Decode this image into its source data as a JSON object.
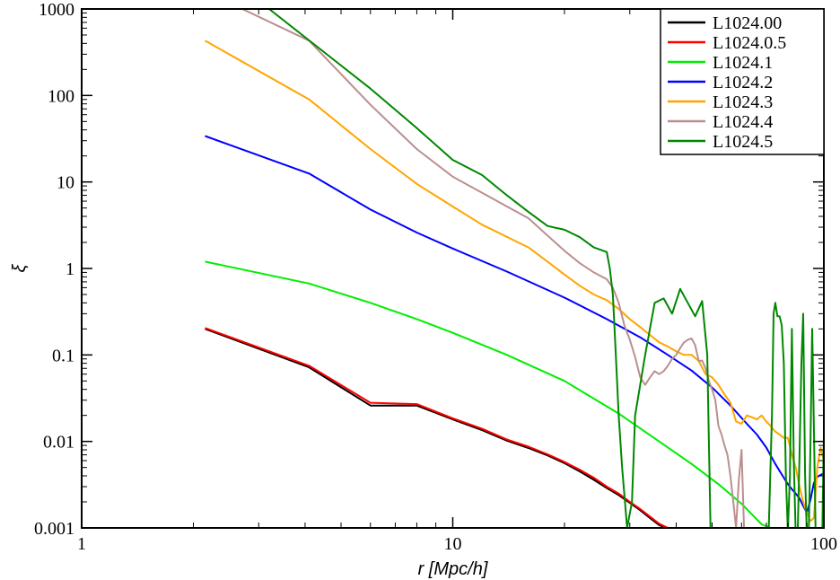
{
  "chart_data": {
    "type": "line",
    "xlabel": "r [Mpc/h]",
    "ylabel": "ξ",
    "xscale": "log",
    "yscale": "log",
    "xlim": [
      1,
      100
    ],
    "ylim": [
      0.001,
      1000
    ],
    "x_ticks": [
      "1",
      "10",
      "100"
    ],
    "y_ticks": [
      "0.001",
      "0.01",
      "0.1",
      "1",
      "10",
      "100",
      "1000"
    ],
    "legend_position": "top-right",
    "grid": false,
    "series": [
      {
        "name": "L1024.00",
        "color": "#000000",
        "x": [
          2.15,
          4.1,
          6.0,
          8.0,
          10.0,
          12.0,
          14.0,
          16.0,
          18.0,
          20.0,
          22.0,
          24.0,
          26.0,
          28.0,
          30.0,
          32.0,
          34.0,
          36.0,
          37.5
        ],
        "y": [
          0.2,
          0.072,
          0.026,
          0.026,
          0.018,
          0.0135,
          0.0102,
          0.0084,
          0.0069,
          0.0056,
          0.0045,
          0.0036,
          0.0029,
          0.0024,
          0.00195,
          0.0016,
          0.0013,
          0.00108,
          0.001
        ]
      },
      {
        "name": "L1024.0.5",
        "color": "#ff0000",
        "x": [
          2.15,
          4.1,
          6.0,
          8.0,
          10.0,
          12.0,
          14.0,
          16.0,
          18.0,
          20.0,
          22.0,
          24.0,
          26.0,
          28.0,
          30.0,
          32.0,
          34.0,
          36.0,
          38.0
        ],
        "y": [
          0.205,
          0.075,
          0.028,
          0.027,
          0.0185,
          0.014,
          0.0105,
          0.0087,
          0.0071,
          0.0058,
          0.0047,
          0.0038,
          0.003,
          0.0025,
          0.002,
          0.00165,
          0.00135,
          0.00112,
          0.001
        ]
      },
      {
        "name": "L1024.1",
        "color": "#00ee00",
        "x": [
          2.15,
          4.1,
          6.0,
          8.0,
          10.0,
          14.0,
          20.0,
          28.0,
          36.0,
          44.0,
          52.0,
          60.0,
          68.0,
          72.0
        ],
        "y": [
          1.2,
          0.67,
          0.4,
          0.26,
          0.18,
          0.1,
          0.05,
          0.021,
          0.01,
          0.0055,
          0.0032,
          0.0019,
          0.0011,
          0.001
        ]
      },
      {
        "name": "L1024.2",
        "color": "#0000ff",
        "x": [
          2.15,
          4.1,
          6.0,
          8.0,
          10.0,
          14.0,
          20.0,
          26.0,
          32.0,
          38.0,
          44.0,
          50.0,
          56.0,
          62.0,
          66.0,
          70.0,
          74.0,
          78.0,
          80.0,
          82.0,
          84.0,
          86.0,
          88.0,
          90.0,
          92.0,
          94.0,
          96.0,
          98.0,
          100.0
        ],
        "y": [
          34.0,
          12.5,
          4.8,
          2.6,
          1.7,
          0.92,
          0.46,
          0.26,
          0.16,
          0.1,
          0.066,
          0.042,
          0.026,
          0.016,
          0.012,
          0.0085,
          0.0055,
          0.0038,
          0.0032,
          0.0028,
          0.0025,
          0.0022,
          0.0018,
          0.0015,
          0.0021,
          0.0033,
          0.0039,
          0.0041,
          0.0043
        ]
      },
      {
        "name": "L1024.3",
        "color": "#ffa500",
        "x": [
          2.15,
          4.1,
          6.0,
          8.0,
          10.0,
          12.0,
          16.0,
          18.0,
          20.0,
          22.0,
          24.0,
          26.0,
          28.0,
          30.0,
          32.0,
          34.0,
          36.0,
          38.0,
          40.0,
          42.0,
          44.0,
          46.0,
          48.0,
          50.0,
          52.0,
          54.0,
          56.0,
          58.0,
          60.0,
          62.0,
          64.0,
          66.0,
          68.0,
          70.0,
          72.0,
          74.0,
          76.0,
          78.0,
          80.0,
          82.0,
          84.0,
          86.0,
          88.0,
          90.0,
          92.0,
          94.0,
          96.0,
          98.0,
          100.0
        ],
        "y": [
          430.0,
          90.0,
          24.0,
          9.5,
          5.2,
          3.2,
          1.75,
          1.2,
          0.85,
          0.63,
          0.5,
          0.43,
          0.34,
          0.26,
          0.21,
          0.17,
          0.14,
          0.125,
          0.11,
          0.1,
          0.1,
          0.085,
          0.06,
          0.055,
          0.045,
          0.035,
          0.028,
          0.017,
          0.016,
          0.02,
          0.019,
          0.018,
          0.02,
          0.017,
          0.015,
          0.013,
          0.012,
          0.011,
          0.011,
          0.007,
          0.005,
          0.003,
          0.002,
          0.0015,
          0.0012,
          0.0013,
          0.005,
          0.0085,
          0.006
        ]
      },
      {
        "name": "L1024.4",
        "color": "#bc8f8f",
        "x": [
          2.15,
          4.1,
          6.0,
          8.0,
          10.0,
          12.0,
          14.0,
          16.0,
          18.0,
          20.0,
          22.0,
          24.0,
          26.0,
          27.0,
          28.0,
          29.0,
          30.0,
          31.0,
          32.0,
          33.0,
          34.0,
          35.0,
          36.0,
          37.0,
          38.0,
          39.0,
          40.0,
          41.0,
          42.0,
          43.0,
          44.0,
          45.0,
          46.0,
          47.0,
          48.0,
          49.0,
          50.0,
          51.0,
          52.0,
          53.0,
          54.0,
          55.0,
          56.0,
          57.0,
          58.0,
          59.0,
          60.0,
          61.0,
          62.0
        ],
        "y": [
          1600.0,
          430.0,
          78.0,
          24.0,
          11.5,
          7.5,
          5.2,
          3.8,
          2.4,
          1.6,
          1.15,
          0.9,
          0.75,
          0.6,
          0.4,
          0.22,
          0.15,
          0.095,
          0.055,
          0.045,
          0.055,
          0.065,
          0.06,
          0.065,
          0.075,
          0.09,
          0.1,
          0.12,
          0.14,
          0.15,
          0.155,
          0.13,
          0.085,
          0.086,
          0.07,
          0.05,
          0.04,
          0.03,
          0.015,
          0.012,
          0.009,
          0.007,
          0.004,
          0.002,
          0.001,
          0.0035,
          0.008,
          0.0009,
          0.0008
        ]
      },
      {
        "name": "L1024.5",
        "color": "#008800",
        "x": [
          3.2,
          6.0,
          8.0,
          10.0,
          12.0,
          14.0,
          16.0,
          18.0,
          20.0,
          22.0,
          24.0,
          26.0,
          26.5,
          27.0,
          27.5,
          28.0,
          28.6,
          29.5,
          30.4,
          31.0,
          33.0,
          35.0,
          37.0,
          39.0,
          41.0,
          43.0,
          45.0,
          47.0,
          48.5,
          49.5,
          51.0,
          52.0,
          54.0,
          56.0,
          58.0,
          60.0,
          62.0,
          64.0,
          66.0,
          68.0,
          70.0,
          71.0,
          72.5,
          73.2,
          74.0,
          75.0,
          76.0,
          77.0,
          78.0,
          79.0,
          80.0,
          81.0,
          82.0,
          83.0,
          84.0,
          85.0,
          86.0,
          87.0,
          88.0,
          89.0,
          90.0,
          91.0,
          92.0,
          93.0,
          94.0,
          95.0,
          96.0,
          97.0,
          98.0,
          99.0,
          100.0
        ],
        "y": [
          1000.0,
          120.0,
          42.0,
          18.0,
          12.0,
          7.0,
          4.5,
          3.1,
          2.8,
          2.3,
          1.75,
          1.55,
          1.0,
          0.5,
          0.1,
          0.02,
          0.005,
          0.001,
          0.002,
          0.02,
          0.1,
          0.4,
          0.45,
          0.3,
          0.58,
          0.4,
          0.28,
          0.42,
          0.1,
          0.001,
          0.0009,
          0.0008,
          0.0008,
          0.0008,
          0.0008,
          0.0008,
          0.0008,
          0.0008,
          0.0008,
          0.0008,
          0.0008,
          0.0009,
          0.02,
          0.3,
          0.4,
          0.28,
          0.28,
          0.22,
          0.08,
          0.004,
          0.0009,
          0.004,
          0.2,
          0.006,
          0.0008,
          0.0008,
          0.007,
          0.08,
          0.3,
          0.004,
          0.0008,
          0.0008,
          0.008,
          0.2,
          0.015,
          0.0009,
          0.0008,
          0.0008,
          0.0008,
          0.0008,
          0.012
        ]
      }
    ]
  }
}
